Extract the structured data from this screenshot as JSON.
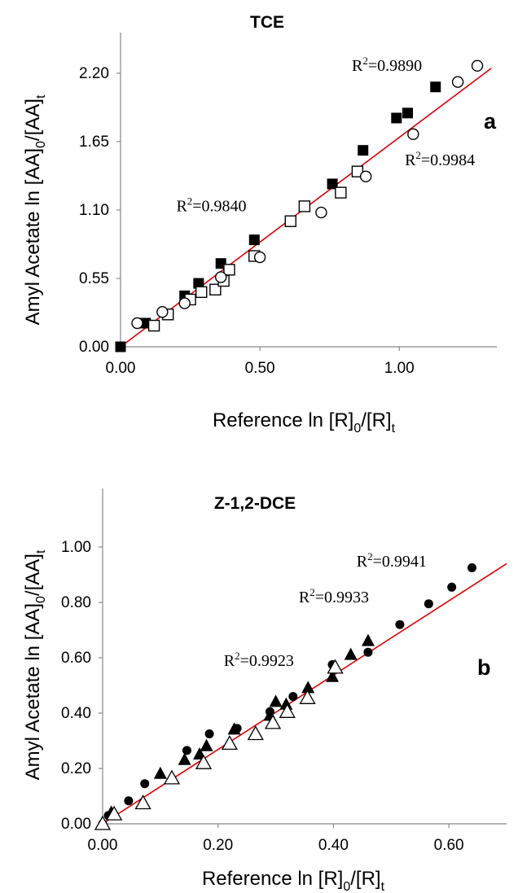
{
  "chart_data": [
    {
      "type": "scatter",
      "title": "TCE",
      "panel_label": "a",
      "xlabel": "Reference  ln [R]",
      "xlabel_sub_0": "0",
      "xlabel_mid": "/[R]",
      "xlabel_sub_t": "t",
      "ylabel": "Amyl Acetate ln [AA]",
      "ylabel_sub_0": "0",
      "ylabel_mid": "/[AA]",
      "ylabel_sub_t": "t",
      "xlim": [
        0,
        1.35
      ],
      "ylim": [
        0,
        2.2
      ],
      "xticks": [
        "0.00",
        "0.50",
        "1.00"
      ],
      "xtick_values": [
        0,
        0.5,
        1.0
      ],
      "yticks": [
        "0.00",
        "0.55",
        "1.10",
        "1.65",
        "2.20"
      ],
      "ytick_values": [
        0,
        0.55,
        1.1,
        1.65,
        2.2
      ],
      "fit_line": {
        "color": "#e00000",
        "x": [
          0,
          1.33
        ],
        "y": [
          0,
          2.24
        ]
      },
      "annotations": [
        {
          "text": "R",
          "sup": "2",
          "rest": "=0.9890",
          "x": 0.83,
          "y": 2.22
        },
        {
          "text": "R",
          "sup": "2",
          "rest": "=0.9984",
          "x": 1.02,
          "y": 1.46
        },
        {
          "text": "R",
          "sup": "2",
          "rest": "=0.9840",
          "x": 0.2,
          "y": 1.09
        }
      ],
      "series": [
        {
          "marker": "filled-square",
          "x": [
            0.0,
            0.09,
            0.23,
            0.28,
            0.36,
            0.48,
            0.76,
            0.87,
            0.99,
            1.03,
            1.13
          ],
          "y": [
            0.0,
            0.19,
            0.41,
            0.51,
            0.67,
            0.86,
            1.31,
            1.58,
            1.84,
            1.88,
            2.09
          ]
        },
        {
          "marker": "open-square",
          "x": [
            0.12,
            0.17,
            0.25,
            0.29,
            0.34,
            0.37,
            0.39,
            0.48,
            0.61,
            0.66,
            0.79,
            0.85
          ],
          "y": [
            0.17,
            0.26,
            0.38,
            0.44,
            0.46,
            0.53,
            0.62,
            0.73,
            1.01,
            1.13,
            1.24,
            1.41
          ]
        },
        {
          "marker": "open-circle",
          "x": [
            0.06,
            0.15,
            0.23,
            0.36,
            0.5,
            0.72,
            0.88,
            1.05,
            1.21,
            1.28
          ],
          "y": [
            0.19,
            0.28,
            0.35,
            0.56,
            0.72,
            1.08,
            1.37,
            1.71,
            2.13,
            2.26
          ]
        }
      ]
    },
    {
      "type": "scatter",
      "title": "Z-1,2-DCE",
      "panel_label": "b",
      "xlabel": "Reference  ln [R]",
      "xlabel_sub_0": "0",
      "xlabel_mid": "/[R]",
      "xlabel_sub_t": "t",
      "ylabel": "Amyl Acetate ln [AA]",
      "ylabel_sub_0": "0",
      "ylabel_mid": "/[AA]",
      "ylabel_sub_t": "t",
      "xlim": [
        0,
        0.7
      ],
      "ylim": [
        0,
        1.15
      ],
      "xticks": [
        "0.00",
        "0.20",
        "0.40",
        "0.60"
      ],
      "xtick_values": [
        0,
        0.2,
        0.4,
        0.6
      ],
      "yticks": [
        "0.00",
        "0.20",
        "0.40",
        "0.60",
        "0.80",
        "1.00"
      ],
      "ytick_values": [
        0,
        0.2,
        0.4,
        0.6,
        0.8,
        1.0
      ],
      "fit_line": {
        "color": "#e00000",
        "x": [
          0,
          0.7
        ],
        "y": [
          0,
          0.94
        ]
      },
      "annotations": [
        {
          "text": "R",
          "sup": "2",
          "rest": "=0.9941",
          "x": 0.44,
          "y": 0.93
        },
        {
          "text": "R",
          "sup": "2",
          "rest": "=0.9933",
          "x": 0.34,
          "y": 0.8
        },
        {
          "text": "R",
          "sup": "2",
          "rest": "=0.9923",
          "x": 0.21,
          "y": 0.57
        }
      ],
      "series": [
        {
          "marker": "filled-circle",
          "x": [
            0.0,
            0.01,
            0.045,
            0.073,
            0.146,
            0.185,
            0.233,
            0.29,
            0.33,
            0.398,
            0.46,
            0.515,
            0.565,
            0.605,
            0.64
          ],
          "y": [
            0.0,
            0.03,
            0.083,
            0.145,
            0.265,
            0.325,
            0.345,
            0.405,
            0.46,
            0.575,
            0.62,
            0.72,
            0.795,
            0.855,
            0.925
          ]
        },
        {
          "marker": "filled-triangle",
          "x": [
            0.0,
            0.015,
            0.1,
            0.142,
            0.168,
            0.18,
            0.228,
            0.29,
            0.3,
            0.318,
            0.356,
            0.398,
            0.43,
            0.46
          ],
          "y": [
            0.0,
            0.04,
            0.18,
            0.23,
            0.25,
            0.28,
            0.34,
            0.39,
            0.44,
            0.43,
            0.49,
            0.53,
            0.61,
            0.66
          ]
        },
        {
          "marker": "open-triangle",
          "x": [
            0.0,
            0.02,
            0.07,
            0.12,
            0.175,
            0.22,
            0.265,
            0.295,
            0.32,
            0.355,
            0.403
          ],
          "y": [
            0.0,
            0.035,
            0.075,
            0.165,
            0.22,
            0.29,
            0.325,
            0.365,
            0.405,
            0.455,
            0.565
          ]
        }
      ]
    }
  ]
}
